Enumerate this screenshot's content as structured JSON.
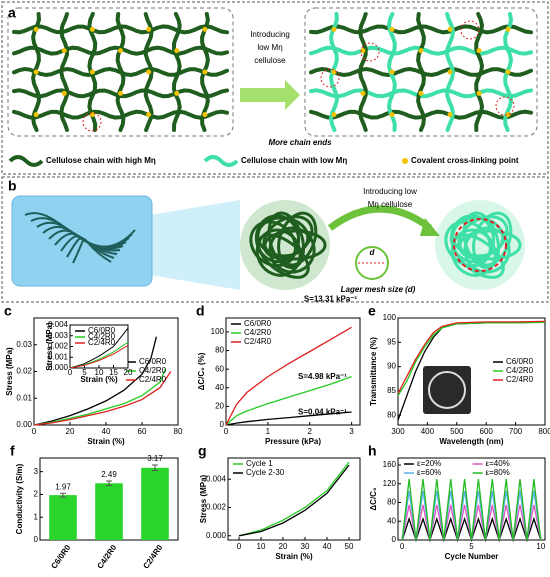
{
  "diagram": {
    "a": {
      "label": "a",
      "arrow_text": [
        "Introducing",
        "low Mη",
        "cellulose"
      ],
      "note": "More chain ends"
    },
    "legend": [
      "Cellulose chain with high Mη",
      "Cellulose chain with low Mη",
      "Covalent cross-linking point"
    ],
    "b": {
      "label": "b",
      "arrow_text": [
        "Introducing low",
        "Mη cellulose"
      ],
      "d": "d",
      "note": "Lager mesh size (d)"
    }
  },
  "chart_data": [
    {
      "type": "line",
      "label": "c",
      "x_label": "Strain (%)",
      "y_label": "Stress (MPa)",
      "xlim": [
        0,
        80
      ],
      "xticks": [
        0,
        20,
        40,
        60,
        80
      ],
      "ylim": [
        0,
        0.04
      ],
      "yticks": [
        {
          "value": 0,
          "label": "0.00"
        },
        {
          "value": 0.01,
          "label": "0.01"
        },
        {
          "value": 0.02,
          "label": "0.02"
        },
        {
          "value": 0.03,
          "label": "0.03"
        }
      ],
      "legend": "center right",
      "series": [
        {
          "name": "C6/0R0",
          "color": "#000000",
          "x": [
            0,
            10,
            20,
            30,
            40,
            50,
            60,
            65,
            68
          ],
          "values": [
            0,
            0.0015,
            0.0035,
            0.006,
            0.009,
            0.013,
            0.019,
            0.025,
            0.033
          ]
        },
        {
          "name": "C4/2R0",
          "color": "#22cc22",
          "x": [
            0,
            10,
            20,
            30,
            40,
            50,
            60,
            70,
            73
          ],
          "values": [
            0,
            0.001,
            0.0025,
            0.004,
            0.006,
            0.008,
            0.011,
            0.016,
            0.021
          ]
        },
        {
          "name": "C2/4R0",
          "color": "#e02020",
          "x": [
            0,
            10,
            20,
            30,
            40,
            50,
            60,
            70,
            76
          ],
          "values": [
            0,
            0.0008,
            0.002,
            0.0035,
            0.005,
            0.007,
            0.0095,
            0.014,
            0.02
          ]
        }
      ]
    },
    {
      "type": "line",
      "x_label": "Strain (%)",
      "y_label": "Stress (MPa)",
      "xlim": [
        0,
        20
      ],
      "xticks": [
        0,
        5,
        10,
        15,
        20
      ],
      "ylim": [
        0,
        0.004
      ],
      "yticks": [
        {
          "value": 0,
          "label": "0.000"
        },
        {
          "value": 0.001,
          "label": "0.001"
        },
        {
          "value": 0.002,
          "label": "0.002"
        },
        {
          "value": 0.003,
          "label": "0.003"
        },
        {
          "value": 0.004,
          "label": "0.004"
        }
      ],
      "legend": "upper left",
      "series": [
        {
          "name": "C6/0R0",
          "color": "#000000",
          "x": [
            0,
            5,
            10,
            15,
            20
          ],
          "values": [
            0,
            0.0004,
            0.0011,
            0.002,
            0.0037
          ]
        },
        {
          "name": "C4/2R0",
          "color": "#22cc22",
          "x": [
            0,
            5,
            10,
            15,
            20
          ],
          "values": [
            0,
            0.0003,
            0.0008,
            0.0015,
            0.0024
          ]
        },
        {
          "name": "C2/4R0",
          "color": "#e02020",
          "x": [
            0,
            5,
            10,
            15,
            20
          ],
          "values": [
            0,
            0.00025,
            0.0007,
            0.0013,
            0.0021
          ]
        }
      ]
    },
    {
      "type": "line",
      "label": "d",
      "x_label": "Pressure (kPa)",
      "y_label": "ΔC/C₀ (%)",
      "xlim": [
        0,
        3.2
      ],
      "xticks": [
        0,
        1,
        2,
        3
      ],
      "ylim": [
        0,
        115
      ],
      "yticks": [
        0,
        20,
        40,
        60,
        80,
        100
      ],
      "legend": "upper left",
      "x": [
        0,
        0.25,
        0.5,
        1,
        1.5,
        2,
        2.5,
        3
      ],
      "series": [
        {
          "name": "C6/0R0",
          "color": "#000000",
          "values": [
            0,
            2,
            3.5,
            6,
            8,
            10,
            12,
            14
          ]
        },
        {
          "name": "C4/2R0",
          "color": "#22cc22",
          "values": [
            0,
            10,
            15,
            23,
            30,
            37,
            44,
            52
          ]
        },
        {
          "name": "C2/4R0",
          "color": "#e02020",
          "values": [
            0,
            22,
            35,
            52,
            66,
            79,
            92,
            105
          ]
        }
      ],
      "annotations": [
        {
          "text": "S=13.31 kPa⁻¹",
          "color": "#e02020"
        },
        {
          "text": "S=4.98 kPa⁻¹",
          "color": "#22cc22"
        },
        {
          "text": "S=0.04 kPa⁻¹",
          "color": "#000000"
        }
      ]
    },
    {
      "type": "line",
      "label": "e",
      "x_label": "Wavelength (nm)",
      "y_label": "Transmittance (%)",
      "xlim": [
        300,
        800
      ],
      "xticks": [
        300,
        400,
        500,
        600,
        700,
        800
      ],
      "ylim": [
        78,
        100
      ],
      "yticks": [
        80,
        85,
        90,
        95,
        100
      ],
      "legend": "center right",
      "x": [
        300,
        330,
        360,
        390,
        420,
        450,
        500,
        600,
        700,
        800
      ],
      "series": [
        {
          "name": "C6/0R0",
          "color": "#000000",
          "values": [
            79,
            84,
            89,
            93,
            96,
            98,
            98.8,
            99,
            99,
            99.2
          ]
        },
        {
          "name": "C4/2R0",
          "color": "#22cc22",
          "values": [
            84,
            87,
            91,
            94,
            96.5,
            98,
            98.8,
            99,
            99,
            99.1
          ]
        },
        {
          "name": "C2/4R0",
          "color": "#e02020",
          "values": [
            84.5,
            88,
            91.5,
            94.5,
            97,
            98.3,
            99,
            99.2,
            99.2,
            99.3
          ]
        }
      ]
    },
    {
      "type": "bar",
      "label": "f",
      "y_label": "Conductivity (S/m)",
      "categories": [
        "C6/0R0",
        "C4/2R0",
        "C2/4R0"
      ],
      "values": [
        1.97,
        2.49,
        3.17
      ],
      "errors": [
        0.08,
        0.1,
        0.12
      ],
      "color": "#2bd42b",
      "ylim": [
        0,
        3.6
      ],
      "yticks": [
        0,
        1,
        2,
        3
      ]
    },
    {
      "type": "line",
      "label": "g",
      "x_label": "Strain (%)",
      "y_label": "Stress (MPa)",
      "xlim": [
        -5,
        55
      ],
      "xticks": [
        0,
        10,
        20,
        30,
        40,
        50
      ],
      "ylim": [
        -0.0003,
        0.0055
      ],
      "yticks": [
        {
          "value": 0,
          "label": "0.000"
        },
        {
          "value": 0.002,
          "label": "0.002"
        },
        {
          "value": 0.004,
          "label": "0.004"
        }
      ],
      "legend": "upper left",
      "x": [
        0,
        10,
        20,
        30,
        40,
        50
      ],
      "series": [
        {
          "name": "Cycle 1",
          "color": "#22cc22",
          "values": [
            0,
            0.0004,
            0.0011,
            0.002,
            0.0032,
            0.0052
          ]
        },
        {
          "name": "Cycle 2-30",
          "color": "#000000",
          "values": [
            0,
            0.0003,
            0.0009,
            0.0018,
            0.003,
            0.005
          ]
        }
      ]
    },
    {
      "type": "line",
      "label": "h",
      "x_label": "Cycle Number",
      "y_label": "ΔC/C₀",
      "xlim": [
        -0.3,
        10.3
      ],
      "xticks": [
        0,
        5,
        10
      ],
      "ylim": [
        0,
        175
      ],
      "yticks": [
        0,
        40,
        80,
        120,
        160
      ],
      "legend": "top",
      "legend_columns": 2,
      "x": [
        0,
        0.5,
        1,
        1.5,
        2,
        2.5,
        3,
        3.5,
        4,
        4.5,
        5,
        5.5,
        6,
        6.5,
        7,
        7.5,
        8,
        8.5,
        9,
        9.5,
        10
      ],
      "series": [
        {
          "name": "ε=20%",
          "color": "#000000",
          "values": [
            0,
            45,
            0,
            45,
            0,
            45,
            0,
            45,
            0,
            45,
            0,
            45,
            0,
            45,
            0,
            45,
            0,
            45,
            0,
            45,
            0
          ]
        },
        {
          "name": "ε=40%",
          "color": "#e055c0",
          "values": [
            0,
            75,
            0,
            75,
            0,
            75,
            0,
            75,
            0,
            75,
            0,
            75,
            0,
            75,
            0,
            75,
            0,
            75,
            0,
            75,
            0
          ]
        },
        {
          "name": "ε=60%",
          "color": "#5ab0e8",
          "values": [
            0,
            105,
            0,
            105,
            0,
            105,
            0,
            105,
            0,
            105,
            0,
            105,
            0,
            105,
            0,
            105,
            0,
            105,
            0,
            105,
            0
          ]
        },
        {
          "name": "ε=80%",
          "color": "#22bb22",
          "values": [
            0,
            130,
            0,
            130,
            0,
            130,
            0,
            130,
            0,
            130,
            0,
            130,
            0,
            130,
            0,
            130,
            0,
            130,
            0,
            130,
            0
          ]
        }
      ]
    }
  ]
}
